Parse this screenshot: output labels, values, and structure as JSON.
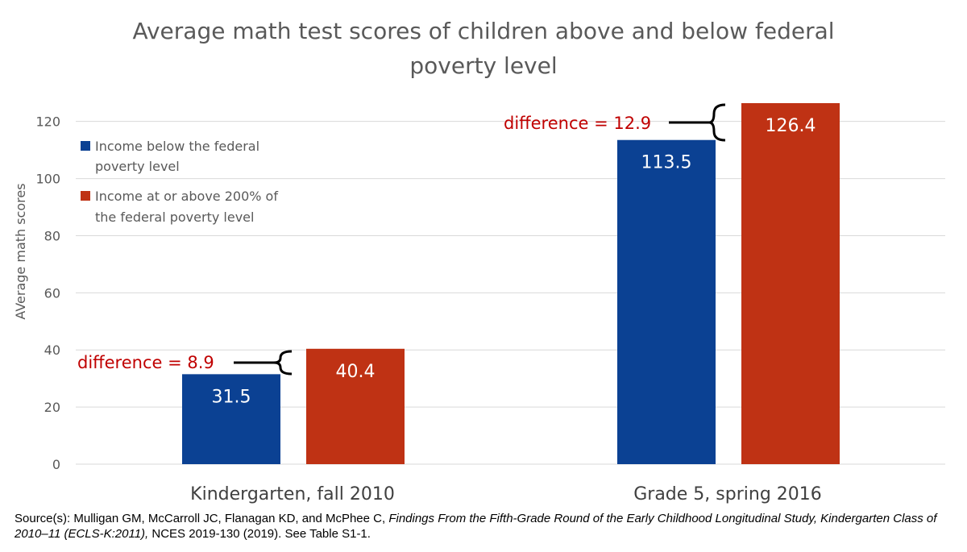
{
  "chart_data": {
    "type": "bar",
    "title_lines": [
      "Average math test scores of children above and below federal",
      "poverty level"
    ],
    "categories": [
      "Kindergarten, fall 2010",
      "Grade 5, spring 2016"
    ],
    "series": [
      {
        "name": "Income below the federal poverty level",
        "legend_lines": [
          "Income below the federal",
          "poverty level"
        ],
        "color": "#0b4193",
        "values": [
          31.5,
          113.5
        ],
        "labels": [
          "31.5",
          "113.5"
        ]
      },
      {
        "name": "Income at or above 200% of the federal poverty level",
        "legend_lines": [
          "Income at or above 200% of",
          "the federal poverty level"
        ],
        "color": "#bf3214",
        "values": [
          40.4,
          126.4
        ],
        "labels": [
          "40.4",
          "126.4"
        ]
      }
    ],
    "annotations": [
      "difference = 8.9",
      "difference = 12.9"
    ],
    "ylabel": "AVerage math scores",
    "xlabel": "",
    "ylim": [
      0,
      126.4
    ],
    "yticks": [
      0,
      20,
      40,
      60,
      80,
      100,
      120
    ],
    "grid": true,
    "legend_position": "top-left",
    "colors": {
      "annotation": "#c00000",
      "grid": "#d9d9d9",
      "text": "#595959"
    }
  },
  "source": {
    "prefix": "Source(s): Mulligan GM, McCarroll JC, Flanagan KD, and McPhee C, ",
    "title": "Findings From the Fifth-Grade Round of the Early Childhood Longitudinal Study, Kindergarten Class of 2010–11 (ECLS-K:2011),",
    "suffix": " NCES 2019-130 (2019). See Table S1-1."
  }
}
